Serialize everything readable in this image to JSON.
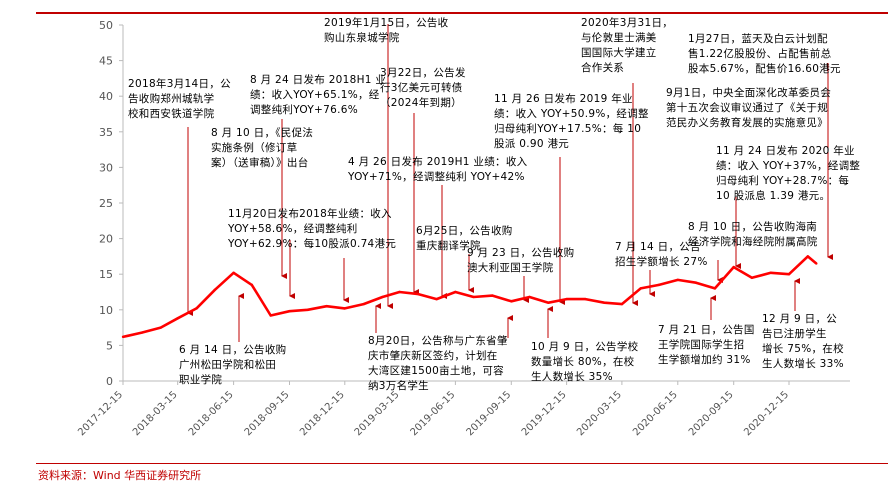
{
  "chart_data": {
    "type": "line",
    "x": [
      "2017-12-15",
      "2018-01-15",
      "2018-02-15",
      "2018-03-15",
      "2018-04-15",
      "2018-05-15",
      "2018-06-15",
      "2018-07-15",
      "2018-08-15",
      "2018-09-15",
      "2018-10-15",
      "2018-11-15",
      "2018-12-15",
      "2019-01-15",
      "2019-02-15",
      "2019-03-15",
      "2019-04-15",
      "2019-05-15",
      "2019-06-15",
      "2019-07-15",
      "2019-08-15",
      "2019-09-15",
      "2019-10-15",
      "2019-11-15",
      "2019-12-15",
      "2020-01-15",
      "2020-02-15",
      "2020-03-15",
      "2020-04-15",
      "2020-05-15",
      "2020-06-15",
      "2020-07-15",
      "2020-08-15",
      "2020-09-15",
      "2020-10-15",
      "2020-11-15",
      "2020-12-15",
      "2021-01-15",
      "2021-01-29"
    ],
    "values": [
      6.2,
      6.8,
      7.5,
      8.8,
      10.2,
      12.8,
      15.2,
      13.5,
      9.2,
      9.8,
      10.0,
      10.5,
      10.2,
      10.8,
      11.8,
      12.5,
      12.2,
      11.5,
      12.5,
      11.8,
      12.0,
      11.2,
      11.8,
      11.0,
      11.5,
      11.5,
      11.0,
      10.8,
      13.0,
      13.5,
      14.2,
      13.8,
      13.0,
      16.0,
      14.5,
      15.2,
      15.0,
      17.5,
      16.5
    ],
    "xticks": [
      "2017-12-15",
      "2018-03-15",
      "2018-06-15",
      "2018-09-15",
      "2018-12-15",
      "2019-03-15",
      "2019-06-15",
      "2019-09-15",
      "2019-12-15",
      "2020-03-15",
      "2020-06-15",
      "2020-09-15",
      "2020-12-15"
    ],
    "ylim": [
      0,
      50
    ],
    "yticks": [
      0,
      5,
      10,
      15,
      20,
      25,
      30,
      35,
      40,
      45,
      50
    ],
    "title": "",
    "xlabel": "",
    "ylabel": "",
    "grid": false,
    "line_color": "#ff0000",
    "annotation_color": "#c00000"
  },
  "annotations": [
    "2019年1月15日，公告收\n购山东泉城学院",
    "2020年3月31日，\n与伦敦里士满美\n国国际大学建立\n合作关系",
    "1月27日，蓝天及白云计划配\n售1.22亿股股份、占配售前总\n股本5.67%，配售价16.60港元",
    "2018年3月14日，公\n告收购郑州城轨学\n校和西安铁道学院",
    "8 月 24 日发布 2018H1 业\n绩：收入YOY+65.1%，经\n调整纯利YOY+76.6%",
    "3月22日，公告发\n行3亿美元可转债\n（2024年到期）",
    "11 月 26 日发布 2019 年业\n绩：收入 YOY+50.9%，经调整\n归母纯利YOY+17.5%：每 10\n股派 0.90 港元",
    "9月1日，中央全面深化改革委员会\n第十五次会议审议通过了《关于规\n范民办义务教育发展的实施意见》",
    "8 月 10 日，《民促法\n实施条例（修订草\n案）（送审稿）》出台",
    "4 月 26 日发布 2019H1 业绩：收入\nYOY+71%，经调整纯利 YOY+42%",
    "11 月 24 日发布 2020 年业\n绩：收入 YOY+37%，经调整\n归母纯利 YOY+28.7%：每\n10 股派息 1.39 港元。",
    "11月20日发布2018年业绩：收入\nYOY+58.6%，经调整纯利\nYOY+62.9%：每10股派0.74港元",
    "6月25日，公告收购\n重庆翻译学院",
    "9 月 23 日，公告收购\n澳大利亚国王学院",
    "7 月 14 日，公告\n招生学额增长 27%",
    "8 月 10 日，公告收购海南\n经济学院和海经院附属高院",
    "6 月 14 日，公告收购\n广州松田学院和松田\n职业学院",
    "8月20日，公告称与广东省肇\n庆市肇庆新区签约，计划在\n大湾区建1500亩土地，可容\n纳3万名学生",
    "10 月 9 日，公告学校\n数量增长 80%，在校\n生人数增长 35%",
    "7 月 21 日，公告国\n王学院国际学生招\n生学额增加约 31%",
    "12 月 9 日，公\n告已注册学生\n增长 75%，在校\n生人数增长 33%"
  ],
  "source": "资料来源：Wind 华西证券研究所"
}
